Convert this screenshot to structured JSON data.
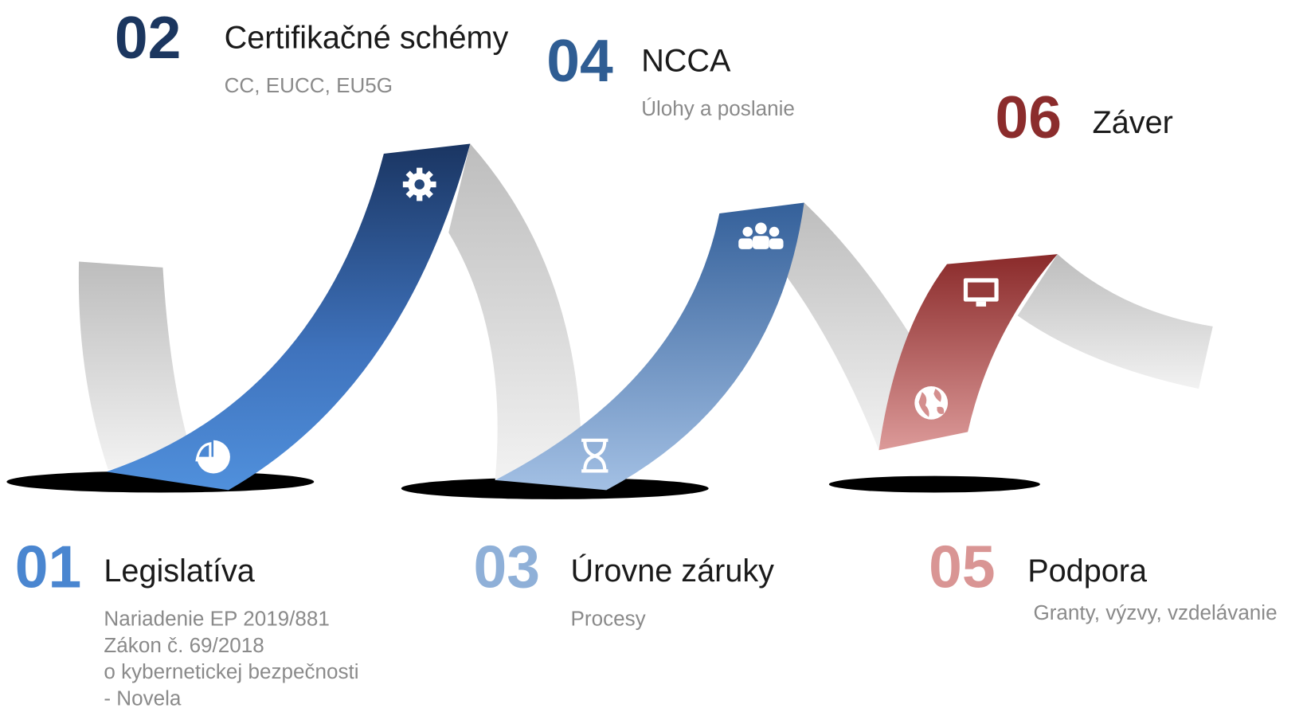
{
  "items": [
    {
      "number": "01",
      "title": "Legislatíva",
      "details": [
        "Nariadenie EP 2019/881",
        "Zákon č. 69/2018",
        "o kybernetickej bezpečnosti",
        "- Novela"
      ]
    },
    {
      "number": "02",
      "title": "Certifikačné schémy",
      "details": [
        "CC, EUCC, EU5G"
      ]
    },
    {
      "number": "03",
      "title": "Úrovne záruky",
      "details": [
        "Procesy"
      ]
    },
    {
      "number": "04",
      "title": "NCCA",
      "details": [
        "Úlohy a poslanie"
      ]
    },
    {
      "number": "05",
      "title": "Podpora",
      "details": [
        "Granty, výzvy, vzdelávanie"
      ]
    },
    {
      "number": "06",
      "title": "Záver",
      "details": []
    }
  ]
}
